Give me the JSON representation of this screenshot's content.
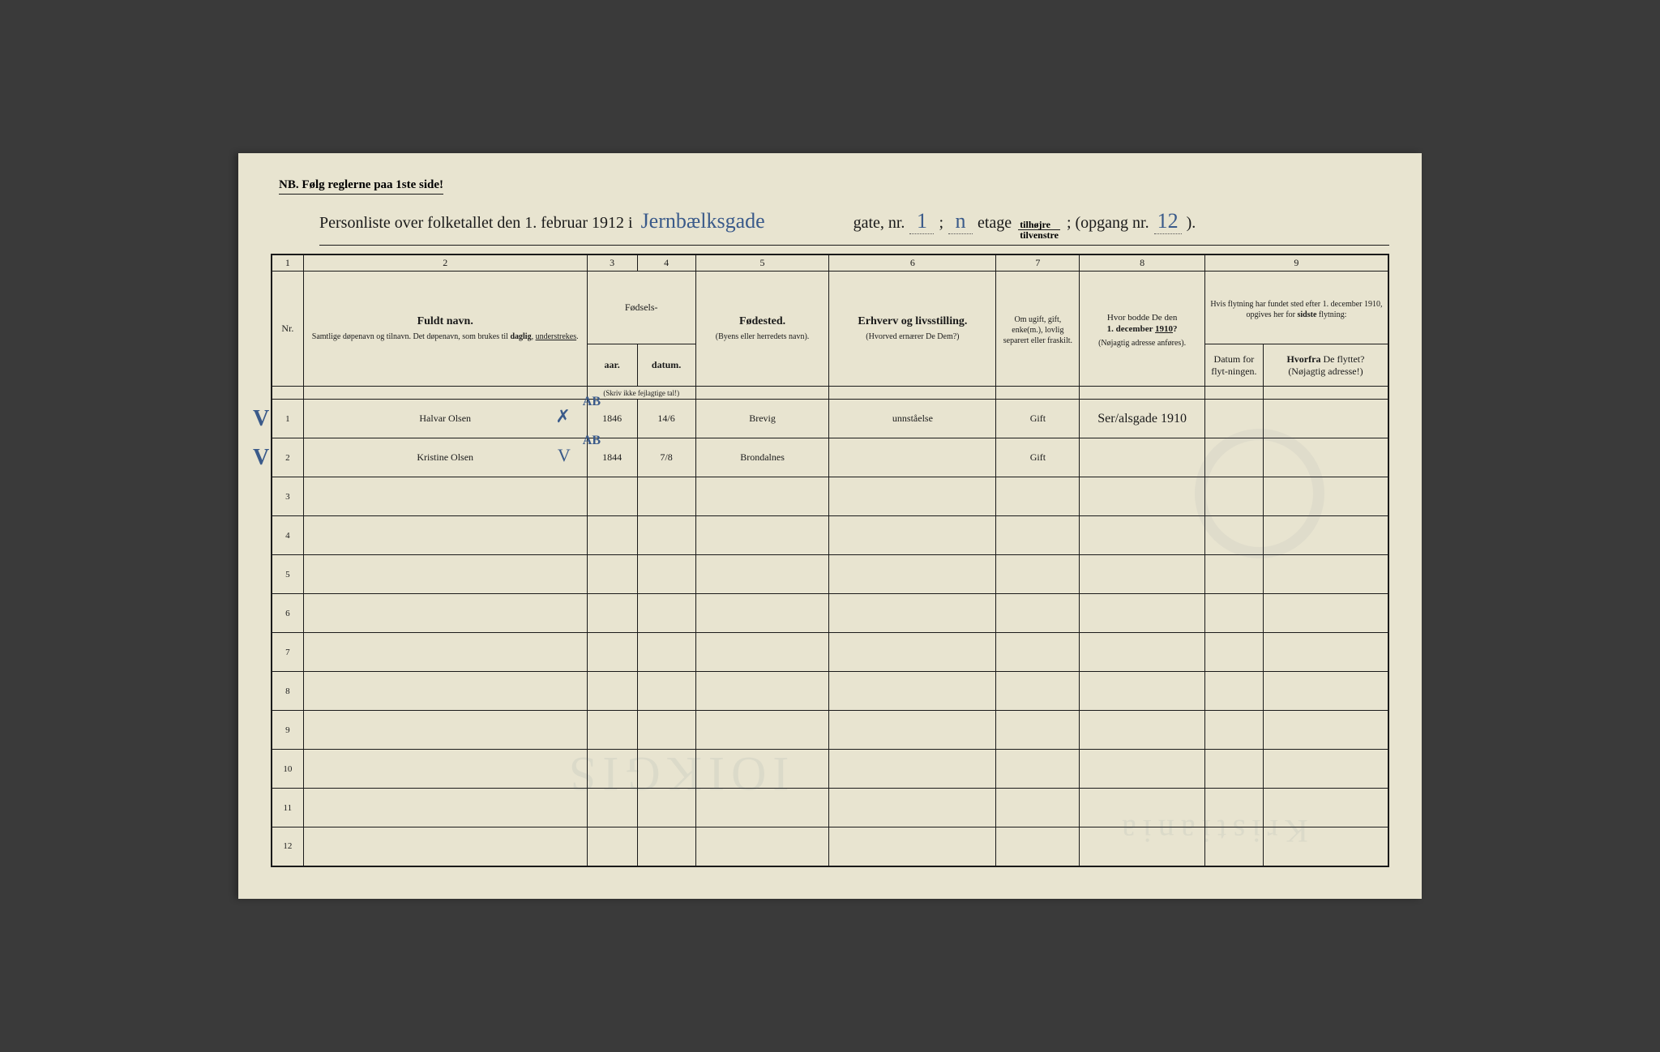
{
  "header": {
    "nb": "NB.  Følg reglerne paa 1ste side!",
    "title_prefix": "Personliste over folketallet den 1. februar 1912 i",
    "street": "Jernbælksgade",
    "gate_label": "gate, nr.",
    "gate_nr": "1",
    "semicolon": ";",
    "etage_val": "n",
    "etage_label": "etage",
    "frac_top": "tilhøjre",
    "frac_bot": "tilvenstre",
    "opgang_label": "; (opgang nr.",
    "opgang_nr": "12",
    "close": ")."
  },
  "columns": {
    "c1": "1",
    "c2": "2",
    "c3": "3",
    "c4": "4",
    "c5": "5",
    "c6": "6",
    "c7": "7",
    "c8": "8",
    "c9": "9",
    "nr": "Nr.",
    "navn_main": "Fuldt navn.",
    "navn_sub": "Samtlige døpenavn og tilnavn. Det døpenavn, som brukes til daglig, understrekes.",
    "fodsels": "Fødsels-",
    "aar": "aar.",
    "datum": "datum.",
    "fodsels_note": "(Skriv ikke fejlagtige tal!)",
    "fodested_main": "Fødested.",
    "fodested_sub": "(Byens eller herredets navn).",
    "erhverv_main": "Erhverv og livsstilling.",
    "erhverv_sub": "(Hvorved ernærer De Dem?)",
    "ugift": "Om ugift, gift, enke(m.), lovlig separert eller fraskilt.",
    "bodde_main": "Hvor bodde De den 1. december 1910?",
    "bodde_sub": "(Nøjagtig adresse anføres).",
    "flyt_top": "Hvis flytning har fundet sted efter 1. december 1910, opgives her for sidste flytning:",
    "flyt_datum": "Datum for flyt-ningen.",
    "flyt_hvor": "Hvorfra De flyttet? (Nøjagtig adresse!)"
  },
  "rows": [
    {
      "nr": "1",
      "check": "V",
      "navn": "Halvar Olsen",
      "name_mark": "✗",
      "ab_mark": "AB",
      "aar": "1846",
      "datum": "14/6",
      "fodested": "Brevig",
      "erhverv": "unnståelse",
      "status": "Gift",
      "bodde": "Ser/alsgade 1910"
    },
    {
      "nr": "2",
      "check": "V",
      "navn": "Kristine Olsen",
      "name_mark": "V",
      "ab_mark": "AB",
      "aar": "1844",
      "datum": "7/8",
      "fodested": "Brondalnes",
      "erhverv": "",
      "status": "Gift",
      "bodde": ""
    },
    {
      "nr": "3"
    },
    {
      "nr": "4"
    },
    {
      "nr": "5"
    },
    {
      "nr": "6"
    },
    {
      "nr": "7"
    },
    {
      "nr": "8"
    },
    {
      "nr": "9"
    },
    {
      "nr": "10"
    },
    {
      "nr": "11"
    },
    {
      "nr": "12"
    }
  ],
  "colors": {
    "paper": "#e8e4d0",
    "ink": "#1a1a1a",
    "hand": "#3a5a8a"
  }
}
